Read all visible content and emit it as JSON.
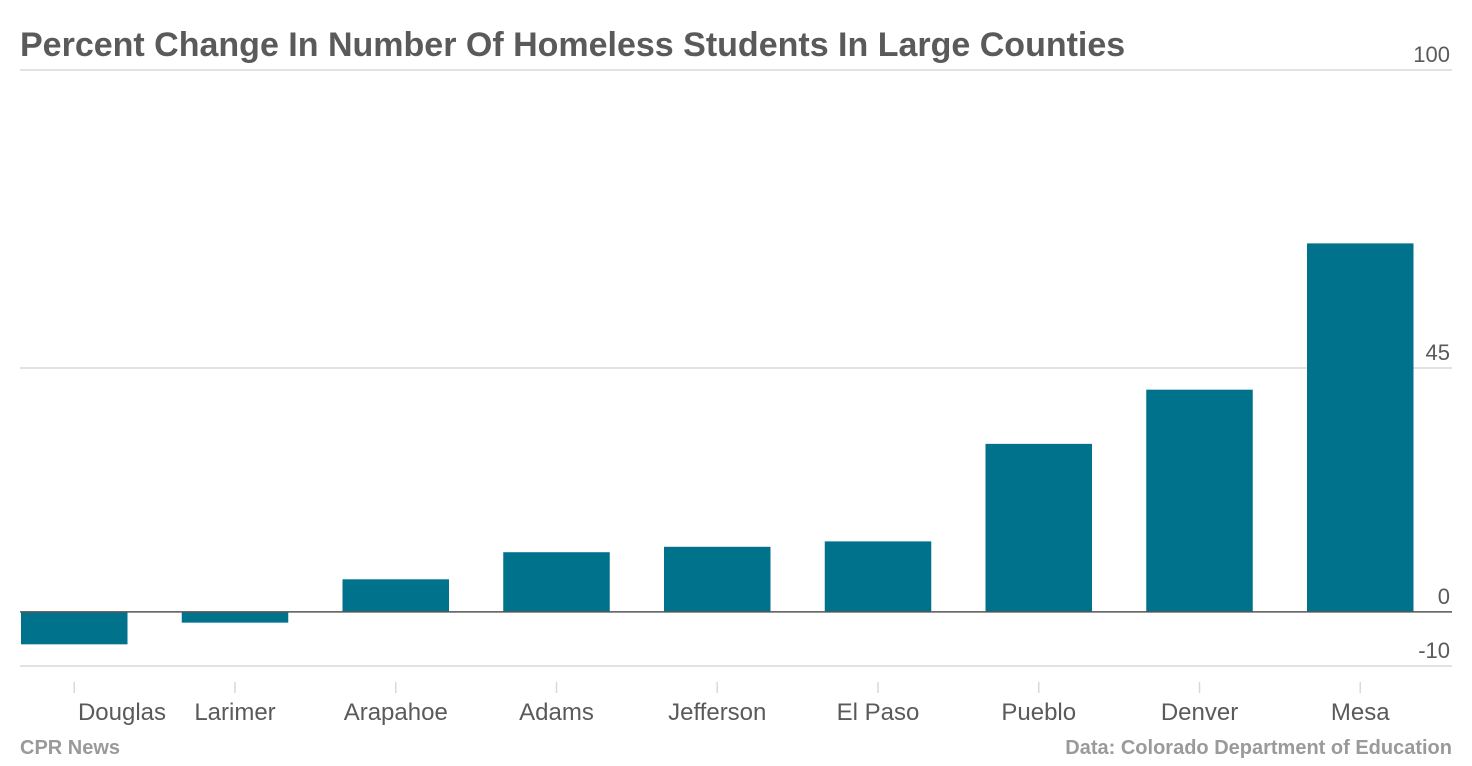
{
  "footer": {
    "source_left": "CPR News",
    "source_right": "Data: Colorado Department of Education"
  },
  "colors": {
    "bar": "#00728b",
    "grid": "#d9d9d9",
    "zero_line": "#555555",
    "title": "#5a5a5a",
    "tick_label": "#5a5a5a",
    "footer": "#9a9a9a"
  },
  "chart_data": {
    "type": "bar",
    "title": "Percent Change In Number Of Homeless Students In Large Counties",
    "xlabel": "",
    "ylabel": "",
    "categories": [
      "Douglas",
      "Larimer",
      "Arapahoe",
      "Adams",
      "Jefferson",
      "El Paso",
      "Pueblo",
      "Denver",
      "Mesa"
    ],
    "values": [
      -6,
      -2,
      6,
      11,
      12,
      13,
      31,
      41,
      68
    ],
    "ylim": [
      -10,
      100
    ],
    "yticks": [
      100,
      45,
      0,
      -10
    ],
    "grid": true,
    "y_axis_side": "right",
    "legend": "none"
  }
}
